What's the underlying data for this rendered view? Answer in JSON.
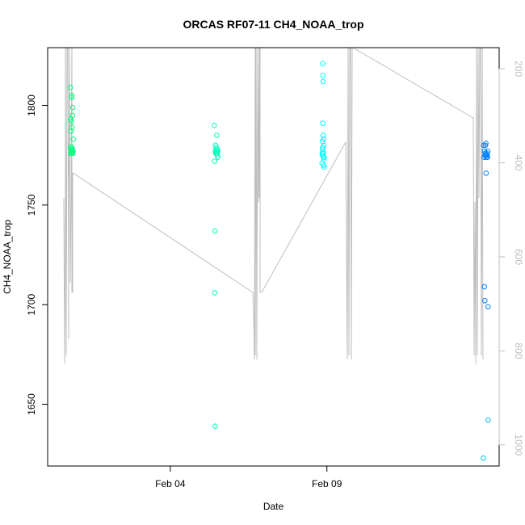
{
  "chart_data": {
    "type": "scatter",
    "title": "ORCAS RF07-11 CH4_NOAA_trop",
    "xlabel": "Date",
    "ylabel": "CH4_NOAA_trop",
    "xlim": [
      "2016-01-31T02:00",
      "2016-02-14T12:00"
    ],
    "ylim": [
      1619,
      1829
    ],
    "x_ticks": [
      {
        "value": "2016-02-04T00:00",
        "label": "Feb 04"
      },
      {
        "value": "2016-02-09T00:00",
        "label": "Feb 09"
      }
    ],
    "y_ticks": [
      1650,
      1700,
      1750,
      1800
    ],
    "y2_axis": {
      "ticks": [
        200,
        400,
        600,
        800,
        1000
      ],
      "lim": [
        1045,
        155
      ],
      "color": "#bebebe"
    },
    "grid": false,
    "colors": {
      "flight1": "#00ff7f",
      "flight2": "#00ffbf",
      "flight3": "#00ffff",
      "flight4": "#0080ff",
      "flight4_mid": "#00bfff",
      "pressure_line": "#bebebe"
    },
    "series": [
      {
        "color": "#00ff7f",
        "points": [
          [
            "2016-01-31T19:25",
            1809
          ],
          [
            "2016-01-31T19:40",
            1793
          ],
          [
            "2016-01-31T20:00",
            1787
          ],
          [
            "2016-01-31T20:10",
            1792
          ],
          [
            "2016-01-31T20:25",
            1804
          ],
          [
            "2016-01-31T20:35",
            1805
          ],
          [
            "2016-01-31T20:45",
            1789
          ],
          [
            "2016-01-31T21:05",
            1795
          ],
          [
            "2016-01-31T21:15",
            1799
          ],
          [
            "2016-01-31T21:35",
            1783
          ],
          [
            "2016-01-31T19:30",
            1779
          ],
          [
            "2016-01-31T19:50",
            1778
          ],
          [
            "2016-01-31T20:05",
            1777
          ],
          [
            "2016-01-31T20:20",
            1776
          ],
          [
            "2016-01-31T20:40",
            1777
          ],
          [
            "2016-01-31T20:55",
            1778
          ],
          [
            "2016-01-31T21:10",
            1776
          ],
          [
            "2016-01-31T21:25",
            1777
          ],
          [
            "2016-01-31T19:45",
            1776
          ],
          [
            "2016-01-31T20:30",
            1779
          ],
          [
            "2016-01-31T21:00",
            1777
          ]
        ]
      },
      {
        "color": "#00ffbf",
        "points": [
          [
            "2016-02-05T09:40",
            1790
          ],
          [
            "2016-02-05T10:00",
            1772
          ],
          [
            "2016-02-05T10:15",
            1737
          ],
          [
            "2016-02-05T10:05",
            1706
          ],
          [
            "2016-02-05T10:25",
            1639
          ],
          [
            "2016-02-05T10:40",
            1780
          ],
          [
            "2016-02-05T11:00",
            1778
          ],
          [
            "2016-02-05T11:20",
            1776
          ],
          [
            "2016-02-05T11:35",
            1785
          ],
          [
            "2016-02-05T11:50",
            1776
          ],
          [
            "2016-02-05T12:10",
            1778
          ],
          [
            "2016-02-05T12:25",
            1774
          ],
          [
            "2016-02-05T10:30",
            1777
          ],
          [
            "2016-02-05T10:50",
            1776
          ],
          [
            "2016-02-05T11:10",
            1779
          ],
          [
            "2016-02-05T11:45",
            1777
          ],
          [
            "2016-02-05T12:00",
            1775
          ],
          [
            "2016-02-05T12:20",
            1777
          ]
        ]
      },
      {
        "color": "#00ffff",
        "points": [
          [
            "2016-02-08T20:50",
            1821
          ],
          [
            "2016-02-08T21:00",
            1815
          ],
          [
            "2016-02-08T21:10",
            1812
          ],
          [
            "2016-02-08T20:55",
            1791
          ],
          [
            "2016-02-08T21:15",
            1785
          ],
          [
            "2016-02-08T21:30",
            1783
          ],
          [
            "2016-02-08T20:30",
            1782
          ],
          [
            "2016-02-08T20:40",
            1779
          ],
          [
            "2016-02-08T21:05",
            1777
          ],
          [
            "2016-02-08T21:20",
            1776
          ],
          [
            "2016-02-08T20:35",
            1775
          ],
          [
            "2016-02-08T21:25",
            1774
          ],
          [
            "2016-02-08T21:40",
            1773
          ],
          [
            "2016-02-08T20:20",
            1771
          ],
          [
            "2016-02-08T21:35",
            1770
          ],
          [
            "2016-02-08T21:45",
            1769
          ],
          [
            "2016-02-08T20:45",
            1778
          ],
          [
            "2016-02-08T21:50",
            1780
          ],
          [
            "2016-02-08T20:25",
            1776
          ],
          [
            "2016-02-08T21:55",
            1774
          ]
        ]
      },
      {
        "color": "#0080ff",
        "points": [
          [
            "2016-02-14T00:10",
            1780
          ],
          [
            "2016-02-14T00:30",
            1774
          ],
          [
            "2016-02-14T00:50",
            1777
          ],
          [
            "2016-02-14T01:10",
            1775
          ],
          [
            "2016-02-14T01:30",
            1780
          ],
          [
            "2016-02-14T01:50",
            1781
          ],
          [
            "2016-02-14T02:10",
            1774
          ],
          [
            "2016-02-14T02:30",
            1776
          ],
          [
            "2016-02-14T03:00",
            1774
          ],
          [
            "2016-02-14T03:20",
            1777
          ],
          [
            "2016-02-14T02:00",
            1766
          ],
          [
            "2016-02-14T00:40",
            1709
          ],
          [
            "2016-02-14T01:00",
            1702
          ],
          [
            "2016-02-14T03:30",
            1699
          ],
          [
            "2016-02-14T01:40",
            1775
          ],
          [
            "2016-02-14T02:40",
            1775
          ],
          [
            "2016-02-14T01:20",
            1776
          ],
          [
            "2016-02-14T02:50",
            1775
          ]
        ]
      },
      {
        "color": "#00bfff",
        "points": [
          [
            "2016-02-14T03:35",
            1642
          ],
          [
            "2016-02-13T23:55",
            1623
          ]
        ]
      }
    ]
  }
}
